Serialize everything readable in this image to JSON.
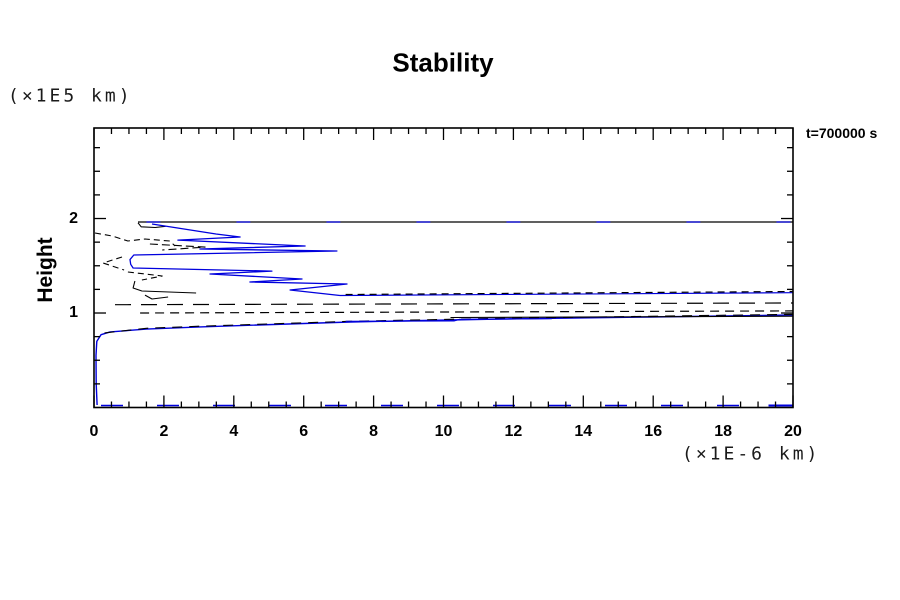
{
  "chart_data": {
    "type": "contour",
    "title": "Stability",
    "annotation": "t=700000 s",
    "ylabel": "Height",
    "ylabel_units": "(×1E5 km)",
    "xlabel_units": "(×1E-6 km)",
    "xlim": [
      0,
      20
    ],
    "ylim": [
      0,
      2.958
    ],
    "x_major_ticks": [
      0,
      2,
      4,
      6,
      8,
      10,
      12,
      14,
      16,
      18,
      20
    ],
    "x_minor_step": 0.5,
    "y_major_ticks": [
      1,
      2
    ],
    "y_minor_step": 0.25,
    "grid": false,
    "legend": "none",
    "colors": {
      "contour_blue": "#0000dd",
      "contour_black": "#000000",
      "frame": "#000000"
    },
    "series": [
      {
        "name": "height2-line-black",
        "color": "#000000",
        "width": 1.3,
        "dash": "",
        "points": [
          [
            1.26,
            1.963
          ],
          [
            20,
            1.963
          ]
        ]
      },
      {
        "name": "height2-line-blue-patches",
        "color": "#0000dd",
        "width": 1.3,
        "dash": "14 76",
        "points": [
          [
            1.5,
            1.963
          ],
          [
            20,
            1.963
          ]
        ]
      },
      {
        "name": "height2-hook-black",
        "color": "#000000",
        "width": 1.1,
        "dash": "",
        "points": [
          [
            1.26,
            1.955
          ],
          [
            1.35,
            1.912
          ],
          [
            1.75,
            1.905
          ],
          [
            2.05,
            1.918
          ]
        ]
      },
      {
        "name": "blue-zigzag",
        "color": "#0000dd",
        "width": 1.3,
        "dash": "",
        "points": [
          [
            1.66,
            1.942
          ],
          [
            3.49,
            1.836
          ],
          [
            4.18,
            1.804
          ],
          [
            2.4,
            1.772
          ],
          [
            6.04,
            1.709
          ],
          [
            3.03,
            1.677
          ],
          [
            6.95,
            1.656
          ],
          [
            1.14,
            1.614
          ],
          [
            1.03,
            1.565
          ],
          [
            1.05,
            1.515
          ],
          [
            1.12,
            1.476
          ],
          [
            5.09,
            1.444
          ],
          [
            3.32,
            1.413
          ],
          [
            5.95,
            1.36
          ],
          [
            4.46,
            1.328
          ],
          [
            7.24,
            1.307
          ],
          [
            5.61,
            1.243
          ],
          [
            7.04,
            1.185
          ]
        ]
      },
      {
        "name": "bundle-blue-upper",
        "color": "#0000dd",
        "width": 1.2,
        "dash": "",
        "points": [
          [
            7.04,
            1.185
          ],
          [
            20,
            1.215
          ]
        ]
      },
      {
        "name": "bundle-black-dash-upper",
        "color": "#000000",
        "width": 1.2,
        "dash": "7 5",
        "points": [
          [
            7.2,
            1.196
          ],
          [
            20,
            1.228
          ]
        ]
      },
      {
        "name": "long-dash-line",
        "color": "#000000",
        "width": 1.2,
        "dash": "16 10",
        "points": [
          [
            0.6,
            1.088
          ],
          [
            20,
            1.106
          ]
        ]
      },
      {
        "name": "dash-line-height1",
        "color": "#000000",
        "width": 1.2,
        "dash": "9 6",
        "points": [
          [
            1.32,
            1.0
          ],
          [
            20,
            1.022
          ]
        ]
      },
      {
        "name": "elbow-blue",
        "color": "#0000dd",
        "width": 1.4,
        "dash": "",
        "points": [
          [
            0.09,
            0.026
          ],
          [
            0.062,
            0.25
          ],
          [
            0.057,
            0.55
          ],
          [
            0.08,
            0.7
          ],
          [
            0.2,
            0.77
          ],
          [
            0.46,
            0.8
          ],
          [
            1.5,
            0.83
          ],
          [
            3.03,
            0.853
          ],
          [
            7.33,
            0.905
          ],
          [
            11.6,
            0.937
          ],
          [
            15.9,
            0.958
          ],
          [
            20,
            0.979
          ]
        ]
      },
      {
        "name": "elbow-black-dash",
        "color": "#000000",
        "width": 1.1,
        "dash": "10 7",
        "points": [
          [
            0.3,
            0.79
          ],
          [
            1.5,
            0.838
          ],
          [
            3.03,
            0.86
          ],
          [
            7.33,
            0.912
          ],
          [
            11.6,
            0.944
          ],
          [
            15.9,
            0.965
          ],
          [
            20,
            0.986
          ]
        ]
      },
      {
        "name": "bundle-blue-step",
        "color": "#0000dd",
        "width": 1.2,
        "dash": "",
        "points": [
          [
            7.2,
            0.912
          ],
          [
            10.3,
            0.916
          ],
          [
            10.45,
            0.932
          ],
          [
            13.1,
            0.94
          ]
        ]
      },
      {
        "name": "height1-black-right",
        "color": "#000000",
        "width": 1.1,
        "dash": "",
        "points": [
          [
            10.2,
            0.952
          ],
          [
            20,
            0.966
          ]
        ]
      },
      {
        "name": "bottom-blue",
        "color": "#0000dd",
        "width": 1.5,
        "dash": "22 34",
        "points": [
          [
            0.2,
            0.021
          ],
          [
            19.3,
            0.021
          ]
        ]
      },
      {
        "name": "bottom-blue-end",
        "color": "#0000dd",
        "width": 2,
        "dash": "",
        "points": [
          [
            19.3,
            0.021
          ],
          [
            20,
            0.021
          ]
        ]
      },
      {
        "name": "left-dash-a",
        "color": "#000000",
        "width": 1.1,
        "dash": "6 4",
        "points": [
          [
            0.03,
            1.847
          ],
          [
            0.52,
            1.815
          ],
          [
            0.97,
            1.762
          ],
          [
            1.46,
            1.783
          ],
          [
            2.17,
            1.762
          ],
          [
            2.32,
            1.709
          ]
        ]
      },
      {
        "name": "left-dash-b",
        "color": "#000000",
        "width": 1.1,
        "dash": "8 4",
        "points": [
          [
            1.6,
            1.73
          ],
          [
            3.18,
            1.698
          ],
          [
            1.95,
            1.667
          ]
        ]
      },
      {
        "name": "left-dash-wedge",
        "color": "#000000",
        "width": 1.1,
        "dash": "6 4",
        "points": [
          [
            0.8,
            1.593
          ],
          [
            0.26,
            1.529
          ],
          [
            0.86,
            1.455
          ]
        ]
      },
      {
        "name": "left-dash-c",
        "color": "#000000",
        "width": 1.1,
        "dash": "6 4",
        "points": [
          [
            0.97,
            1.434
          ],
          [
            1.95,
            1.392
          ],
          [
            1.37,
            1.349
          ]
        ]
      },
      {
        "name": "left-black-curve",
        "color": "#000000",
        "width": 1.1,
        "dash": "",
        "points": [
          [
            1.17,
            1.339
          ],
          [
            1.12,
            1.265
          ],
          [
            1.37,
            1.233
          ],
          [
            2.92,
            1.212
          ]
        ]
      },
      {
        "name": "left-black-u",
        "color": "#000000",
        "width": 1.1,
        "dash": "",
        "points": [
          [
            1.46,
            1.19
          ],
          [
            1.66,
            1.148
          ],
          [
            2.12,
            1.169
          ]
        ]
      }
    ]
  }
}
